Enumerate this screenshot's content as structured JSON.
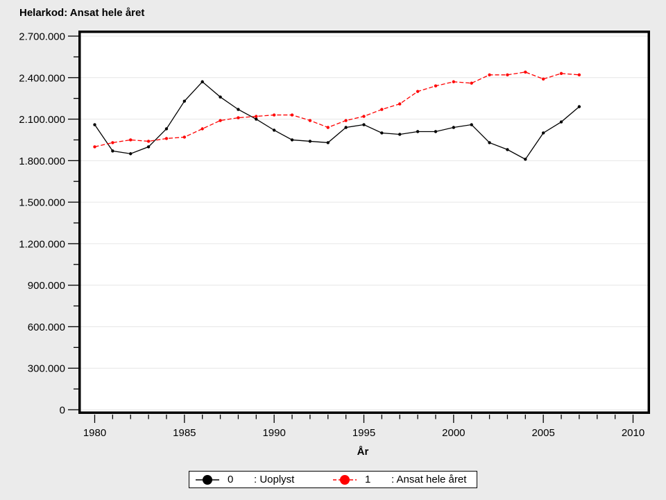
{
  "title": "Helarkod: Ansat hele året",
  "x_axis": {
    "label": "År",
    "major_ticks": [
      1980,
      1985,
      1990,
      1995,
      2000,
      2005,
      2010
    ],
    "minor_step_years": 1,
    "range": [
      1980,
      2010
    ]
  },
  "y_axis": {
    "tick_values": [
      0,
      300000,
      600000,
      900000,
      1200000,
      1500000,
      1800000,
      2100000,
      2400000,
      2700000
    ],
    "tick_labels": [
      "0",
      "300.000",
      "600.000",
      "900.000",
      "1.200.000",
      "1.500.000",
      "1.800.000",
      "2.100.000",
      "2.400.000",
      "2.700.000"
    ],
    "minor_step": 150000,
    "range": [
      0,
      2700000
    ]
  },
  "legend": {
    "entries": [
      {
        "symbol": "0",
        "label": ": Uoplyst",
        "color": "#000000",
        "dash": false
      },
      {
        "symbol": "1",
        "label": ": Ansat hele året",
        "color": "#ff0000",
        "dash": true
      }
    ]
  },
  "colors": {
    "background": "#ebebeb",
    "plot_background": "#ffffff",
    "grid": "#e6e6e6",
    "frame": "#000000",
    "series_0": "#000000",
    "series_1": "#ff0000"
  },
  "chart_data": {
    "type": "line",
    "title": "Helarkod: Ansat hele året",
    "xlabel": "År",
    "ylabel": "",
    "xlim": [
      1980,
      2010
    ],
    "ylim": [
      0,
      2700000
    ],
    "grid": "horizontal-major",
    "legend_position": "bottom-center",
    "x": [
      1980,
      1981,
      1982,
      1983,
      1984,
      1985,
      1986,
      1987,
      1988,
      1989,
      1990,
      1991,
      1992,
      1993,
      1994,
      1995,
      1996,
      1997,
      1998,
      1999,
      2000,
      2001,
      2002,
      2003,
      2004,
      2005,
      2006,
      2007
    ],
    "series": [
      {
        "name": "0 : Uoplyst",
        "color": "#000000",
        "style": "solid",
        "values": [
          2060000,
          1870000,
          1850000,
          1900000,
          2030000,
          2230000,
          2370000,
          2260000,
          2170000,
          2100000,
          2020000,
          1950000,
          1940000,
          1930000,
          2040000,
          2060000,
          2000000,
          1990000,
          2010000,
          2010000,
          2040000,
          2060000,
          1930000,
          1880000,
          1810000,
          2000000,
          2080000,
          2190000
        ]
      },
      {
        "name": "1 : Ansat hele året",
        "color": "#ff0000",
        "style": "dashed",
        "values": [
          1900000,
          1930000,
          1950000,
          1940000,
          1960000,
          1970000,
          2030000,
          2090000,
          2110000,
          2120000,
          2130000,
          2130000,
          2090000,
          2040000,
          2090000,
          2120000,
          2170000,
          2210000,
          2300000,
          2340000,
          2370000,
          2360000,
          2420000,
          2420000,
          2440000,
          2390000,
          2430000,
          2420000
        ]
      }
    ]
  }
}
